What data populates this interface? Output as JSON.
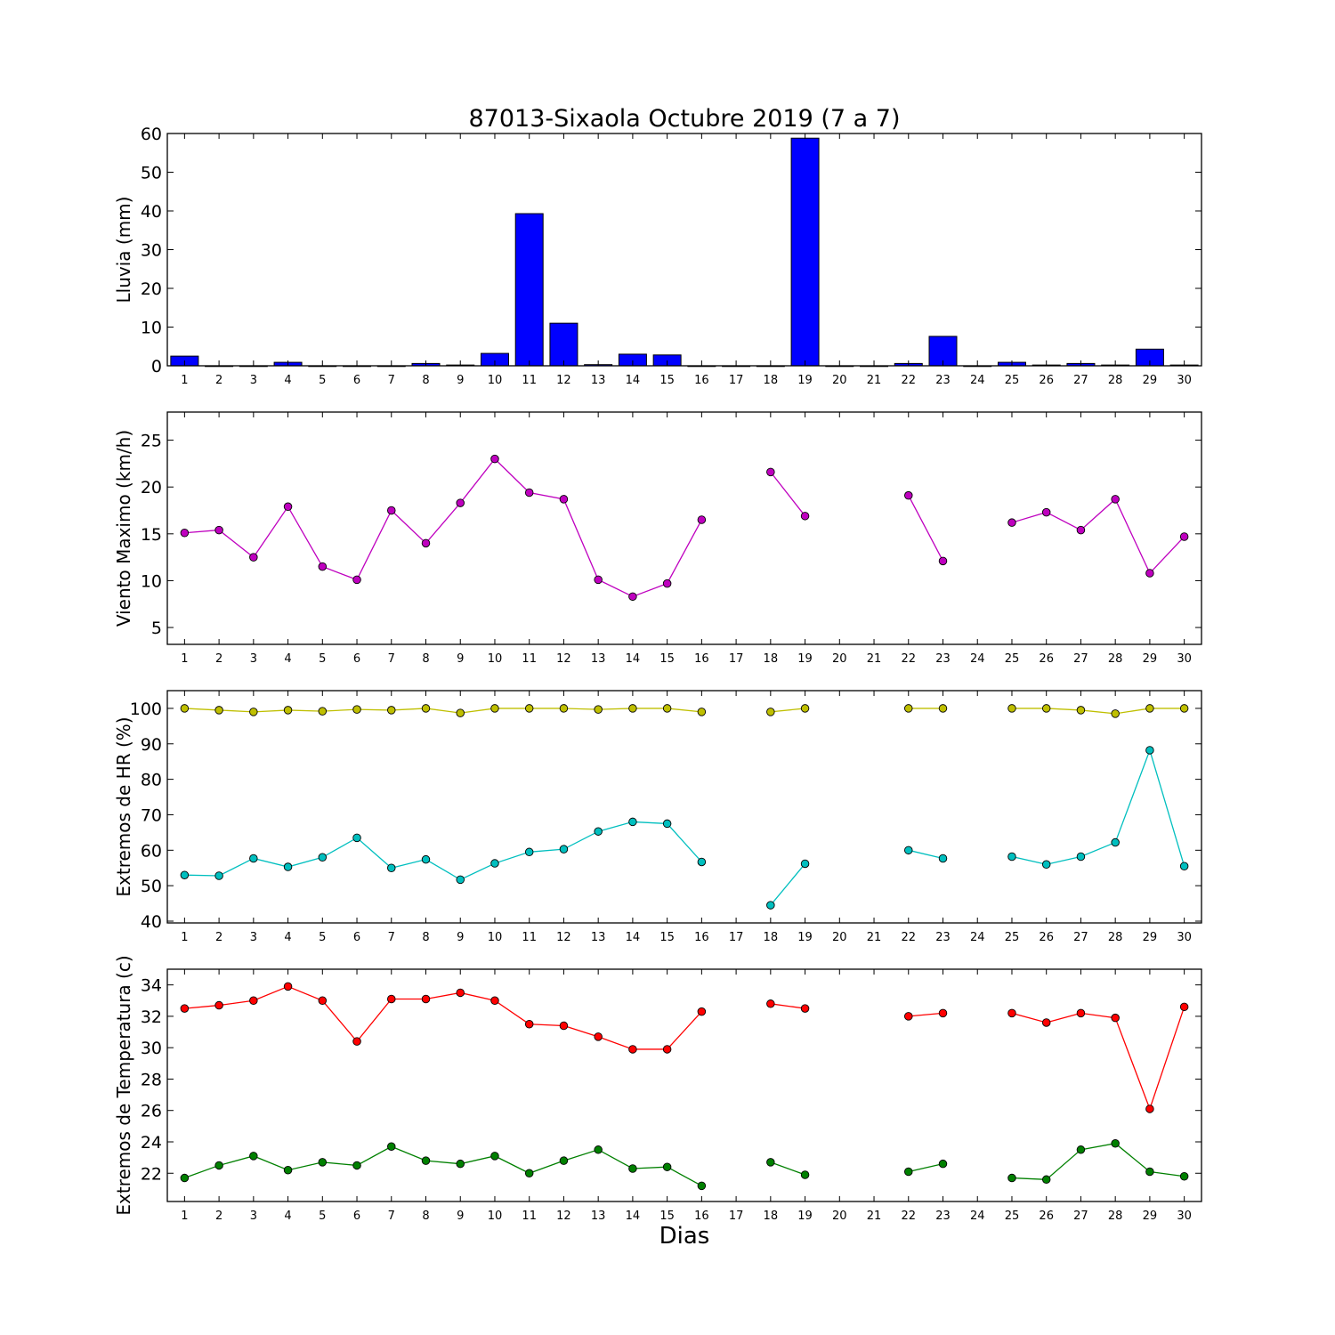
{
  "title": "87013-Sixaola Octubre 2019  (7 a 7)",
  "xlabel": "Dias",
  "colors": {
    "bar": "#0000ff",
    "wind": "#bf00bf",
    "hr_max": "#bfbf00",
    "hr_min": "#00bfbf",
    "t_max": "#ff0000",
    "t_min": "#008000"
  },
  "chart_data": [
    {
      "type": "bar",
      "ylabel": "Lluvia (mm)",
      "ylim": [
        0,
        60
      ],
      "yticks": [
        0,
        10,
        20,
        30,
        40,
        50,
        60
      ],
      "x": [
        1,
        2,
        3,
        4,
        5,
        6,
        7,
        8,
        9,
        10,
        11,
        12,
        13,
        14,
        15,
        16,
        17,
        18,
        19,
        20,
        21,
        22,
        23,
        24,
        25,
        26,
        27,
        28,
        29,
        30
      ],
      "xticks": [
        "1",
        "2",
        "3",
        "4",
        "5",
        "6",
        "7",
        "8",
        "9",
        "10",
        "11",
        "12",
        "13",
        "14",
        "15",
        "16",
        "17",
        "18",
        "19",
        "20",
        "21",
        "22",
        "23",
        "24",
        "25",
        "26",
        "27",
        "28",
        "29",
        "30"
      ],
      "values": [
        2.5,
        0,
        0,
        0.9,
        0,
        0,
        0,
        0.6,
        0.2,
        3.2,
        39.3,
        11.0,
        0.3,
        3.0,
        2.8,
        0,
        0,
        0,
        58.8,
        0,
        0,
        0.6,
        7.6,
        0,
        0.9,
        0.2,
        0.6,
        0.2,
        4.3,
        0.2
      ]
    },
    {
      "type": "line",
      "ylabel": "Viento Maximo (km/h)",
      "ylim": [
        3.2,
        28
      ],
      "yticks": [
        5,
        10,
        15,
        20,
        25
      ],
      "x": [
        1,
        2,
        3,
        4,
        5,
        6,
        7,
        8,
        9,
        10,
        11,
        12,
        13,
        14,
        15,
        16,
        17,
        18,
        19,
        20,
        21,
        22,
        23,
        24,
        25,
        26,
        27,
        28,
        29,
        30
      ],
      "xticks": [
        "1",
        "2",
        "3",
        "4",
        "5",
        "6",
        "7",
        "8",
        "9",
        "10",
        "11",
        "12",
        "13",
        "14",
        "15",
        "16",
        "17",
        "18",
        "19",
        "20",
        "21",
        "22",
        "23",
        "24",
        "25",
        "26",
        "27",
        "28",
        "29",
        "30"
      ],
      "series": [
        {
          "color": "wind",
          "values": [
            15.1,
            15.4,
            12.5,
            17.9,
            11.5,
            10.1,
            17.5,
            14.0,
            18.3,
            23.0,
            19.4,
            18.7,
            10.1,
            8.3,
            9.7,
            16.5,
            null,
            21.6,
            16.9,
            null,
            null,
            19.1,
            12.1,
            null,
            16.2,
            17.3,
            15.4,
            18.7,
            10.8,
            14.7
          ]
        }
      ]
    },
    {
      "type": "line",
      "ylabel": "Extremos de HR (%)",
      "ylim": [
        39.5,
        105
      ],
      "yticks": [
        40,
        50,
        60,
        70,
        80,
        90,
        100
      ],
      "x": [
        1,
        2,
        3,
        4,
        5,
        6,
        7,
        8,
        9,
        10,
        11,
        12,
        13,
        14,
        15,
        16,
        17,
        18,
        19,
        20,
        21,
        22,
        23,
        24,
        25,
        26,
        27,
        28,
        29,
        30
      ],
      "xticks": [
        "1",
        "2",
        "3",
        "4",
        "5",
        "6",
        "7",
        "8",
        "9",
        "10",
        "11",
        "12",
        "13",
        "14",
        "15",
        "16",
        "17",
        "18",
        "19",
        "20",
        "21",
        "22",
        "23",
        "24",
        "25",
        "26",
        "27",
        "28",
        "29",
        "30"
      ],
      "series": [
        {
          "color": "hr_max",
          "values": [
            100,
            99.5,
            99,
            99.5,
            99.2,
            99.7,
            99.5,
            100,
            98.7,
            100,
            100,
            100,
            99.7,
            100,
            100,
            99,
            null,
            99,
            100,
            null,
            null,
            100,
            100,
            null,
            100,
            100,
            99.5,
            98.5,
            100,
            100
          ]
        },
        {
          "color": "hr_min",
          "values": [
            53,
            52.8,
            57.7,
            55.3,
            58,
            63.5,
            55,
            57.4,
            51.7,
            56.3,
            59.5,
            60.3,
            65.3,
            68,
            67.5,
            56.7,
            null,
            44.5,
            56.2,
            null,
            null,
            60,
            57.7,
            null,
            58.2,
            56,
            58.2,
            62.2,
            88.2,
            55.5
          ]
        }
      ]
    },
    {
      "type": "line",
      "ylabel": "Extremos de Temperatura (c)",
      "ylim": [
        20.2,
        35
      ],
      "yticks": [
        22,
        24,
        26,
        28,
        30,
        32,
        34
      ],
      "x": [
        1,
        2,
        3,
        4,
        5,
        6,
        7,
        8,
        9,
        10,
        11,
        12,
        13,
        14,
        15,
        16,
        17,
        18,
        19,
        20,
        21,
        22,
        23,
        24,
        25,
        26,
        27,
        28,
        29,
        30
      ],
      "xticks": [
        "1",
        "2",
        "3",
        "4",
        "5",
        "6",
        "7",
        "8",
        "9",
        "10",
        "11",
        "12",
        "13",
        "14",
        "15",
        "16",
        "17",
        "18",
        "19",
        "20",
        "21",
        "22",
        "23",
        "24",
        "25",
        "26",
        "27",
        "28",
        "29",
        "30"
      ],
      "series": [
        {
          "color": "t_max",
          "values": [
            32.5,
            32.7,
            33,
            33.9,
            33,
            30.4,
            33.1,
            33.1,
            33.5,
            33,
            31.5,
            31.4,
            30.7,
            29.9,
            29.9,
            32.3,
            null,
            32.8,
            32.5,
            null,
            null,
            32,
            32.2,
            null,
            32.2,
            31.6,
            32.2,
            31.9,
            26.1,
            32.6
          ]
        },
        {
          "color": "t_min",
          "values": [
            21.7,
            22.5,
            23.1,
            22.2,
            22.7,
            22.5,
            23.7,
            22.8,
            22.6,
            23.1,
            22,
            22.8,
            23.5,
            22.3,
            22.4,
            21.2,
            null,
            22.7,
            21.9,
            null,
            null,
            22.1,
            22.6,
            null,
            21.7,
            21.6,
            23.5,
            23.9,
            22.1,
            21.8
          ]
        }
      ]
    }
  ]
}
